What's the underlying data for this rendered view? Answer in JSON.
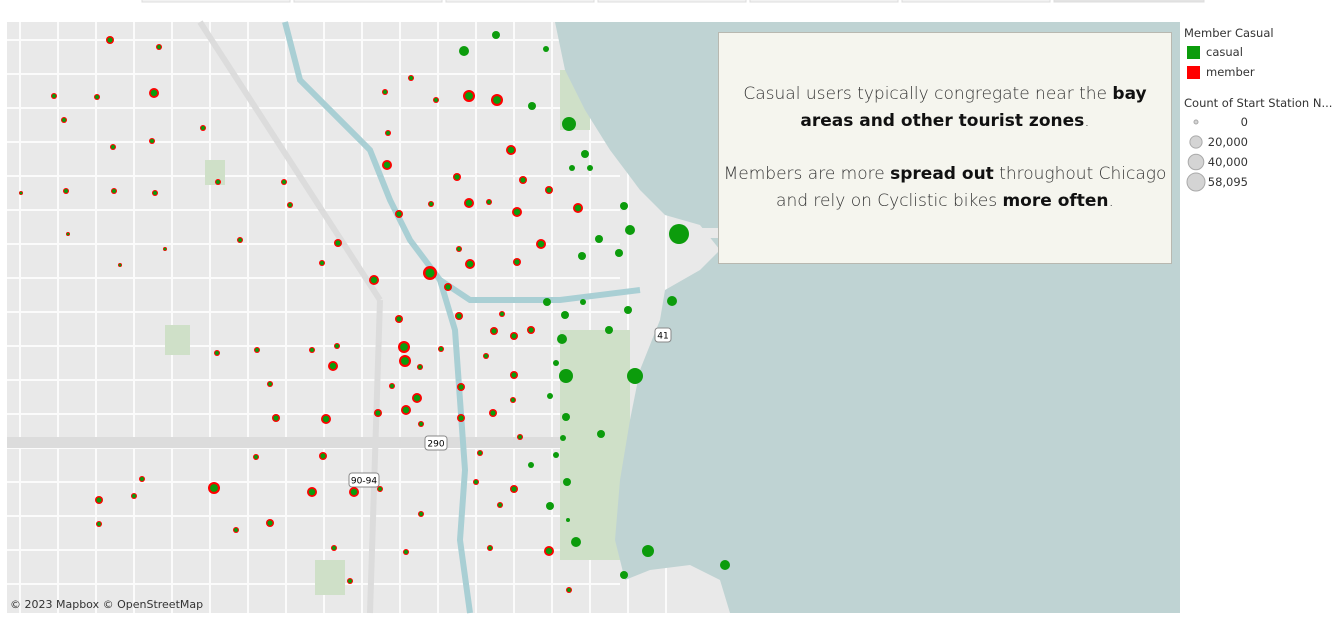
{
  "annotation": {
    "paragraphs": [
      [
        {
          "text": "Casual users typically congregate near the ",
          "bold": false
        },
        {
          "text": "bay areas and other tourist zones",
          "bold": true
        },
        {
          "text": ".",
          "bold": false
        }
      ],
      [
        {
          "text": "Members are more ",
          "bold": false
        },
        {
          "text": "spread out",
          "bold": true
        },
        {
          "text": " throughout Chicago and rely on Cyclistic bikes ",
          "bold": false
        },
        {
          "text": "more often",
          "bold": true
        },
        {
          "text": ".",
          "bold": false
        }
      ]
    ]
  },
  "color_legend": {
    "title": "Member Casual",
    "items": [
      {
        "label": "casual",
        "color": "#0c9c0c"
      },
      {
        "label": "member",
        "color": "#ff0000"
      }
    ]
  },
  "size_legend": {
    "title": "Count of Start Station N...",
    "items": [
      0,
      {
        "value": 20000,
        "label": "20,000"
      },
      {
        "value": 40000,
        "label": "40,000"
      },
      {
        "value": 58095,
        "label": "58,095"
      }
    ]
  },
  "map_labels": {
    "highway_41": "41",
    "highway_290": "290",
    "highway_90_94": "90-94"
  },
  "attribution": "© 2023 Mapbox © OpenStreetMap"
}
